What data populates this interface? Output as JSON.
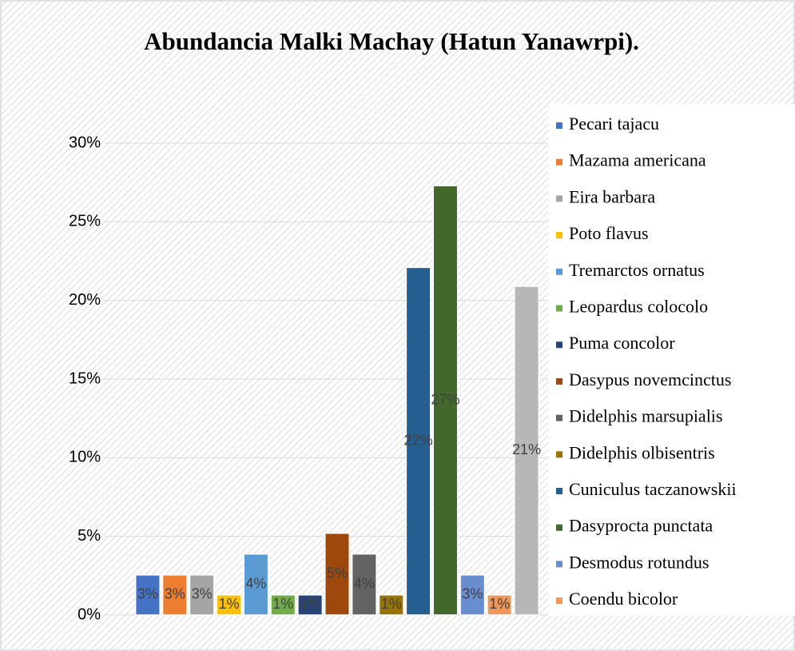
{
  "chart_data": {
    "type": "bar",
    "title": "Abundancia Malki Machay (Hatun Yanawrpi).",
    "ylim": [
      0,
      30
    ],
    "yticks": [
      {
        "value": 0,
        "label": "0%"
      },
      {
        "value": 5,
        "label": "5%"
      },
      {
        "value": 10,
        "label": "10%"
      },
      {
        "value": 15,
        "label": "15%"
      },
      {
        "value": 20,
        "label": "20%"
      },
      {
        "value": 25,
        "label": "25%"
      },
      {
        "value": 30,
        "label": "30%"
      }
    ],
    "grid": true,
    "legend": "right",
    "series": [
      {
        "name": "Pecari tajacu",
        "color": "#4472c4",
        "values": [
          2.55
        ],
        "value_labels": [
          "3%"
        ]
      },
      {
        "name": "Mazama americana",
        "color": "#ed7d31",
        "values": [
          2.55
        ],
        "value_labels": [
          "3%"
        ]
      },
      {
        "name": "Eira barbara",
        "color": "#a5a5a5",
        "values": [
          2.55
        ],
        "value_labels": [
          "3%"
        ]
      },
      {
        "name": "Poto flavus",
        "color": "#ffc000",
        "values": [
          1.28
        ],
        "value_labels": [
          "1%"
        ]
      },
      {
        "name": "Tremarctos ornatus",
        "color": "#5b9bd5",
        "values": [
          3.88
        ],
        "value_labels": [
          "4%"
        ]
      },
      {
        "name": "Leopardus colocolo",
        "color": "#70ad47",
        "values": [
          1.28
        ],
        "value_labels": [
          "1%"
        ]
      },
      {
        "name": "Puma concolor",
        "color": "#264478",
        "values": [
          1.28
        ],
        "value_labels": [
          "1%"
        ]
      },
      {
        "name": "Dasypus novemcinctus",
        "color": "#9e480e",
        "values": [
          5.2
        ],
        "value_labels": [
          "5%"
        ]
      },
      {
        "name": "Didelphis marsupialis",
        "color": "#636363",
        "values": [
          3.88
        ],
        "value_labels": [
          "4%"
        ]
      },
      {
        "name": "Didelphis olbisentris",
        "color": "#997300",
        "values": [
          1.28
        ],
        "value_labels": [
          "1%"
        ]
      },
      {
        "name": "Cuniculus taczanowskii",
        "color": "#255e91",
        "values": [
          22.1
        ],
        "value_labels": [
          "22%"
        ]
      },
      {
        "name": "Dasyprocta punctata",
        "color": "#43682b",
        "values": [
          27.3
        ],
        "value_labels": [
          "27%"
        ]
      },
      {
        "name": "Desmodus rotundus",
        "color": "#698ed0",
        "values": [
          2.55
        ],
        "value_labels": [
          "3%"
        ]
      },
      {
        "name": "Coendu bicolor",
        "color": "#f1975a",
        "values": [
          1.28
        ],
        "value_labels": [
          "1%"
        ]
      },
      {
        "name": null,
        "color": "#b7b7b7",
        "values": [
          20.9
        ],
        "value_labels": [
          "21%"
        ]
      }
    ]
  }
}
